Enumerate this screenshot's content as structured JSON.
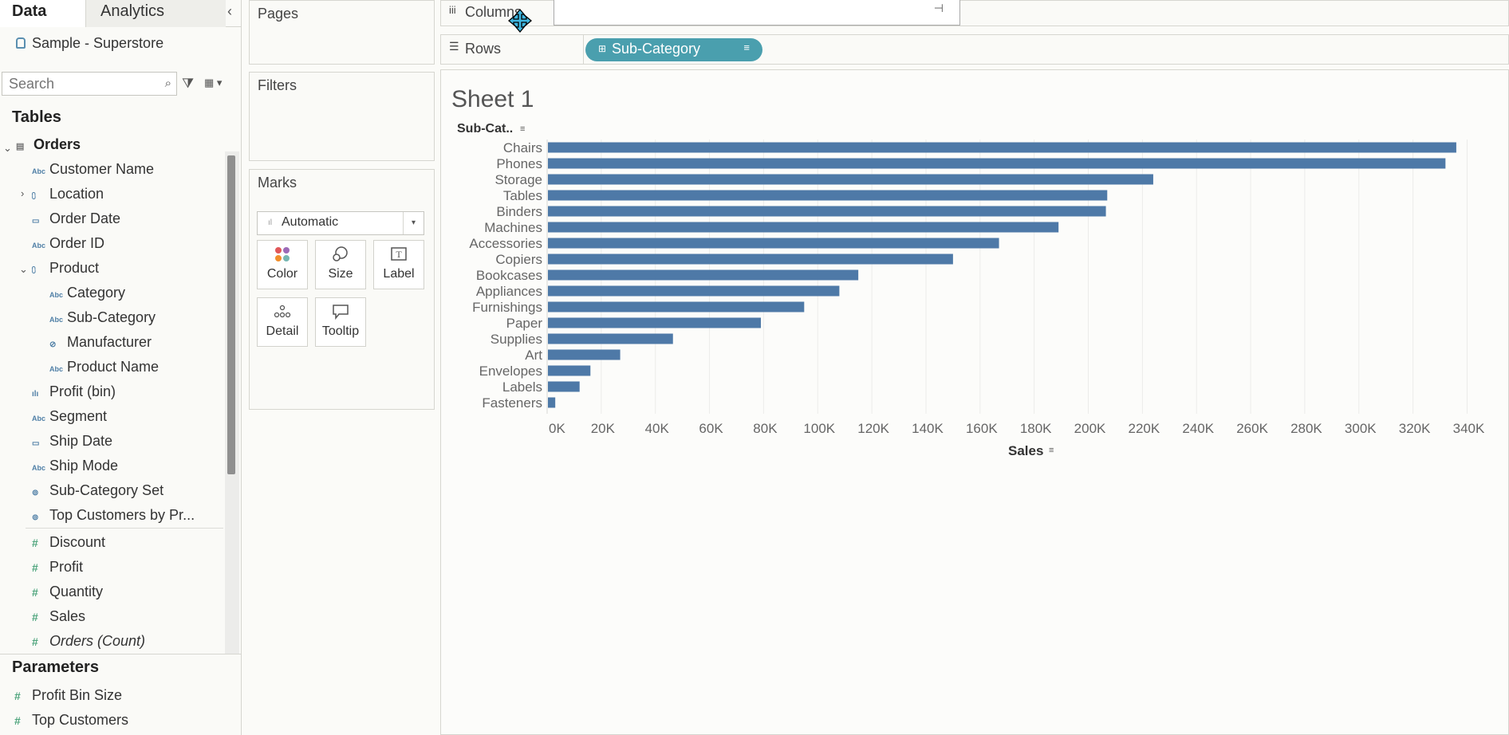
{
  "sidebar": {
    "tabs": {
      "data": "Data",
      "analytics": "Analytics"
    },
    "datasource": "Sample - Superstore",
    "search": {
      "placeholder": "Search"
    },
    "tables_title": "Tables",
    "orders_label": "Orders",
    "fields": [
      {
        "label": "Customer Name",
        "type": "abc"
      },
      {
        "label": "Location",
        "type": "geo"
      },
      {
        "label": "Order Date",
        "type": "date"
      },
      {
        "label": "Order ID",
        "type": "abc"
      },
      {
        "label": "Product",
        "type": "geo"
      },
      {
        "label": "Category",
        "type": "abc"
      },
      {
        "label": "Sub-Category",
        "type": "abc"
      },
      {
        "label": "Manufacturer",
        "type": "link"
      },
      {
        "label": "Product Name",
        "type": "abc"
      },
      {
        "label": "Profit (bin)",
        "type": "bin"
      },
      {
        "label": "Segment",
        "type": "abc"
      },
      {
        "label": "Ship Date",
        "type": "date"
      },
      {
        "label": "Ship Mode",
        "type": "abc"
      },
      {
        "label": "Sub-Category Set",
        "type": "set"
      },
      {
        "label": "Top Customers by Pr...",
        "type": "set"
      }
    ],
    "measures": [
      "Discount",
      "Profit",
      "Quantity",
      "Sales",
      "Orders (Count)"
    ],
    "parameters_title": "Parameters",
    "parameters": [
      "Profit Bin Size",
      "Top Customers"
    ]
  },
  "cards": {
    "pages": "Pages",
    "filters": "Filters",
    "marks": "Marks",
    "mark_type": "Automatic",
    "mark_buttons": [
      "Color",
      "Size",
      "Label",
      "Detail",
      "Tooltip"
    ]
  },
  "shelves": {
    "columns": "Columns",
    "rows": "Rows",
    "rows_pill": "Sub-Category"
  },
  "sheet": {
    "title": "Sheet 1",
    "row_header": "Sub-Cat..",
    "col_header": "Sales"
  },
  "chart_data": {
    "type": "bar",
    "orientation": "horizontal",
    "categories": [
      "Chairs",
      "Phones",
      "Storage",
      "Tables",
      "Binders",
      "Machines",
      "Accessories",
      "Copiers",
      "Bookcases",
      "Appliances",
      "Furnishings",
      "Paper",
      "Supplies",
      "Art",
      "Envelopes",
      "Labels",
      "Fasteners"
    ],
    "values": [
      336000,
      332000,
      224000,
      207000,
      206500,
      189000,
      167000,
      150000,
      115000,
      108000,
      95000,
      79000,
      46500,
      27000,
      16000,
      12000,
      3000
    ],
    "xlabel": "Sales",
    "ylabel": "Sub-Cat..",
    "xlim": [
      0,
      350000
    ],
    "ticks": [
      "0K",
      "20K",
      "40K",
      "60K",
      "80K",
      "100K",
      "120K",
      "140K",
      "160K",
      "180K",
      "200K",
      "220K",
      "240K",
      "260K",
      "280K",
      "300K",
      "320K",
      "340K"
    ],
    "bar_color": "#4e79a7",
    "grid": true
  }
}
